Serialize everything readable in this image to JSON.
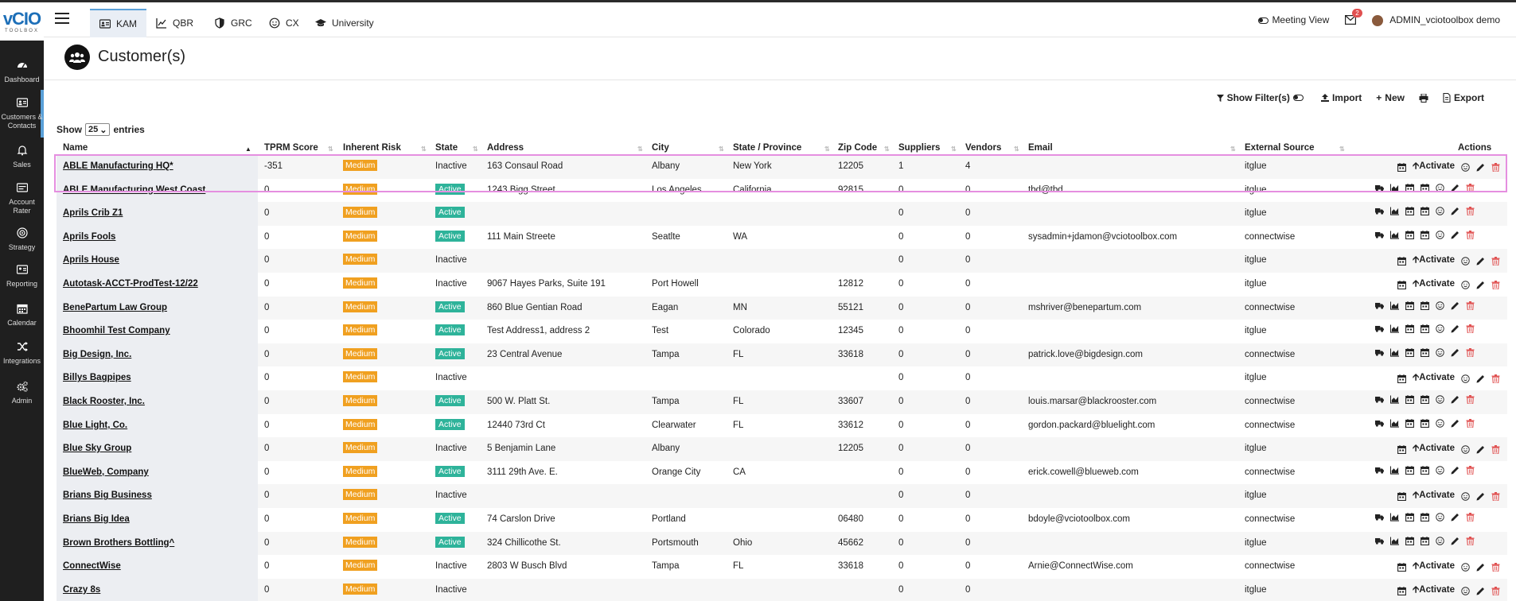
{
  "app": {
    "logo_main": "vCIO",
    "logo_sub": "TOOLBOX"
  },
  "sidebar": {
    "items": [
      {
        "label": "Dashboard",
        "icon": "dashboard-icon"
      },
      {
        "label": "Customers & Contacts",
        "icon": "address-card-icon"
      },
      {
        "label": "Sales",
        "icon": "bell-icon"
      },
      {
        "label": "Account Rater",
        "icon": "rater-card-icon"
      },
      {
        "label": "Strategy",
        "icon": "target-icon"
      },
      {
        "label": "Reporting",
        "icon": "report-card-icon"
      },
      {
        "label": "Calendar",
        "icon": "calendar-icon"
      },
      {
        "label": "Integrations",
        "icon": "shuffle-icon"
      },
      {
        "label": "Admin",
        "icon": "gears-icon"
      }
    ]
  },
  "topnav": {
    "tabs": [
      "KAM",
      "QBR",
      "GRC",
      "CX",
      "University"
    ],
    "meeting_view": "Meeting View",
    "notifications": "2",
    "user": "ADMIN_vciotoolbox demo"
  },
  "page": {
    "title": "Customer(s)"
  },
  "toolbar": {
    "filters": "Show Filter(s)",
    "import": "Import",
    "new": "New",
    "export": "Export"
  },
  "entries": {
    "show": "Show",
    "value": "25",
    "suffix": "entries"
  },
  "table": {
    "headers": [
      "Name",
      "TPRM Score",
      "Inherent Risk",
      "State",
      "Address",
      "City",
      "State / Province",
      "Zip Code",
      "Suppliers",
      "Vendors",
      "Email",
      "External Source",
      "Actions"
    ],
    "activate_label": "Activate",
    "rows": [
      {
        "name": "ABLE Manufacturing HQ*",
        "score": "-351",
        "risk": "Medium",
        "state": "Inactive",
        "address": "163 Consaul Road",
        "city": "Albany",
        "province": "New York",
        "zip": "12205",
        "suppliers": "1",
        "vendors": "4",
        "email": "",
        "source": "itglue"
      },
      {
        "name": "ABLE Manufacturing West Coast",
        "score": "0",
        "risk": "Medium",
        "state": "Active",
        "address": "1243 Bigg Street",
        "city": "Los Angeles",
        "province": "California",
        "zip": "92815",
        "suppliers": "0",
        "vendors": "0",
        "email": "tbd@tbd",
        "source": "itglue"
      },
      {
        "name": "Aprils Crib Z1",
        "score": "0",
        "risk": "Medium",
        "state": "Active",
        "address": "",
        "city": "",
        "province": "",
        "zip": "",
        "suppliers": "0",
        "vendors": "0",
        "email": "",
        "source": "itglue"
      },
      {
        "name": "Aprils Fools",
        "score": "0",
        "risk": "Medium",
        "state": "Active",
        "address": "111 Main Streete",
        "city": "Seatlte",
        "province": "WA",
        "zip": "",
        "suppliers": "0",
        "vendors": "0",
        "email": "sysadmin+jdamon@vciotoolbox.com",
        "source": "connectwise"
      },
      {
        "name": "Aprils House",
        "score": "0",
        "risk": "Medium",
        "state": "Inactive",
        "address": "",
        "city": "",
        "province": "",
        "zip": "",
        "suppliers": "0",
        "vendors": "0",
        "email": "",
        "source": "itglue"
      },
      {
        "name": "Autotask-ACCT-ProdTest-12/22",
        "score": "0",
        "risk": "Medium",
        "state": "Inactive",
        "address": "9067 Hayes Parks, Suite 191",
        "city": "Port Howell",
        "province": "",
        "zip": "12812",
        "suppliers": "0",
        "vendors": "0",
        "email": "",
        "source": "itglue"
      },
      {
        "name": "BenePartum Law Group",
        "score": "0",
        "risk": "Medium",
        "state": "Active",
        "address": "860 Blue Gentian Road",
        "city": "Eagan",
        "province": "MN",
        "zip": "55121",
        "suppliers": "0",
        "vendors": "0",
        "email": "mshriver@benepartum.com",
        "source": "connectwise"
      },
      {
        "name": "Bhoomhil Test Company",
        "score": "0",
        "risk": "Medium",
        "state": "Active",
        "address": "Test Address1, address 2",
        "city": "Test",
        "province": "Colorado",
        "zip": "12345",
        "suppliers": "0",
        "vendors": "0",
        "email": "",
        "source": "itglue"
      },
      {
        "name": "Big Design, Inc.",
        "score": "0",
        "risk": "Medium",
        "state": "Active",
        "address": "23 Central Avenue",
        "city": "Tampa",
        "province": "FL",
        "zip": "33618",
        "suppliers": "0",
        "vendors": "0",
        "email": "patrick.love@bigdesign.com",
        "source": "connectwise"
      },
      {
        "name": "Billys Bagpipes",
        "score": "0",
        "risk": "Medium",
        "state": "Inactive",
        "address": "",
        "city": "",
        "province": "",
        "zip": "",
        "suppliers": "0",
        "vendors": "0",
        "email": "",
        "source": "itglue"
      },
      {
        "name": "Black Rooster, Inc.",
        "score": "0",
        "risk": "Medium",
        "state": "Active",
        "address": "500 W. Platt St.",
        "city": "Tampa",
        "province": "FL",
        "zip": "33607",
        "suppliers": "0",
        "vendors": "0",
        "email": "louis.marsar@blackrooster.com",
        "source": "connectwise"
      },
      {
        "name": "Blue Light, Co.",
        "score": "0",
        "risk": "Medium",
        "state": "Active",
        "address": "12440 73rd Ct",
        "city": "Clearwater",
        "province": "FL",
        "zip": "33612",
        "suppliers": "0",
        "vendors": "0",
        "email": "gordon.packard@bluelight.com",
        "source": "connectwise"
      },
      {
        "name": "Blue Sky Group",
        "score": "0",
        "risk": "Medium",
        "state": "Inactive",
        "address": "5 Benjamin Lane",
        "city": "Albany",
        "province": "",
        "zip": "12205",
        "suppliers": "0",
        "vendors": "0",
        "email": "",
        "source": "itglue"
      },
      {
        "name": "BlueWeb, Company",
        "score": "0",
        "risk": "Medium",
        "state": "Active",
        "address": "3111 29th Ave. E.",
        "city": "Orange City",
        "province": "CA",
        "zip": "",
        "suppliers": "0",
        "vendors": "0",
        "email": "erick.cowell@blueweb.com",
        "source": "connectwise"
      },
      {
        "name": "Brians Big Business",
        "score": "0",
        "risk": "Medium",
        "state": "Inactive",
        "address": "",
        "city": "",
        "province": "",
        "zip": "",
        "suppliers": "0",
        "vendors": "0",
        "email": "",
        "source": "itglue"
      },
      {
        "name": "Brians Big Idea",
        "score": "0",
        "risk": "Medium",
        "state": "Active",
        "address": "74 Carslon Drive",
        "city": "Portland",
        "province": "",
        "zip": "06480",
        "suppliers": "0",
        "vendors": "0",
        "email": "bdoyle@vciotoolbox.com",
        "source": "connectwise"
      },
      {
        "name": "Brown Brothers Bottling^",
        "score": "0",
        "risk": "Medium",
        "state": "Active",
        "address": "324 Chillicothe St.",
        "city": "Portsmouth",
        "province": "Ohio",
        "zip": "45662",
        "suppliers": "0",
        "vendors": "0",
        "email": "",
        "source": "itglue"
      },
      {
        "name": "ConnectWise",
        "score": "0",
        "risk": "Medium",
        "state": "Inactive",
        "address": "2803 W Busch Blvd",
        "city": "Tampa",
        "province": "FL",
        "zip": "33618",
        "suppliers": "0",
        "vendors": "0",
        "email": "Arnie@ConnectWise.com",
        "source": "connectwise"
      },
      {
        "name": "Crazy 8s",
        "score": "0",
        "risk": "Medium",
        "state": "Inactive",
        "address": "",
        "city": "",
        "province": "",
        "zip": "",
        "suppliers": "0",
        "vendors": "0",
        "email": "",
        "source": "itglue"
      }
    ]
  }
}
